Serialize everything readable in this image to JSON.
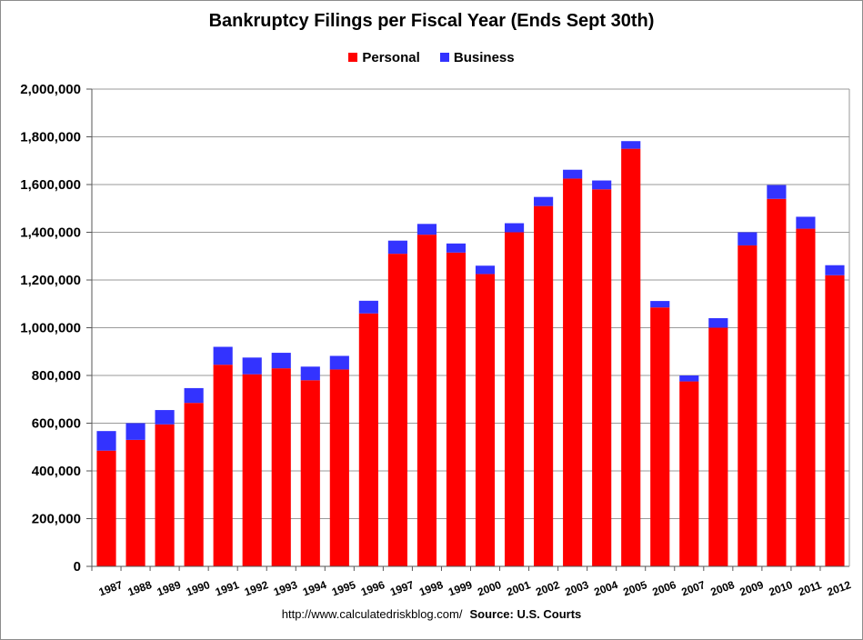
{
  "chart_data": {
    "type": "bar",
    "stacked": true,
    "title": "Bankruptcy Filings per Fiscal Year (Ends Sept 30th)",
    "xlabel": "",
    "ylabel": "",
    "ylim": [
      0,
      2000000
    ],
    "yticks": [
      "0",
      "200,000",
      "400,000",
      "600,000",
      "800,000",
      "1,000,000",
      "1,200,000",
      "1,400,000",
      "1,600,000",
      "1,800,000",
      "2,000,000"
    ],
    "ytick_values": [
      0,
      200000,
      400000,
      600000,
      800000,
      1000000,
      1200000,
      1400000,
      1600000,
      1800000,
      2000000
    ],
    "grid": true,
    "legend_position": "top-center",
    "categories": [
      "1987",
      "1988",
      "1989",
      "1990",
      "1991",
      "1992",
      "1993",
      "1994",
      "1995",
      "1996",
      "1997",
      "1998",
      "1999",
      "2000",
      "2001",
      "2002",
      "2003",
      "2004",
      "2005",
      "2006",
      "2007",
      "2008",
      "2009",
      "2010",
      "2011",
      "2012"
    ],
    "series": [
      {
        "name": "Personal",
        "color": "#ff0000",
        "values": [
          485000,
          530000,
          595000,
          685000,
          845000,
          805000,
          830000,
          780000,
          825000,
          1060000,
          1310000,
          1390000,
          1315000,
          1225000,
          1400000,
          1510000,
          1625000,
          1580000,
          1750000,
          1085000,
          775000,
          1000000,
          1345000,
          1540000,
          1415000,
          1220000
        ]
      },
      {
        "name": "Business",
        "color": "#3333ff",
        "values": [
          82000,
          70000,
          60000,
          62000,
          75000,
          70000,
          65000,
          57000,
          57000,
          53000,
          55000,
          45000,
          38000,
          35000,
          38000,
          38000,
          37000,
          37000,
          32000,
          27000,
          25000,
          40000,
          55000,
          58000,
          50000,
          42000
        ]
      }
    ],
    "totals": [
      567000,
      600000,
      655000,
      747000,
      920000,
      875000,
      895000,
      837000,
      882000,
      1113000,
      1365000,
      1435000,
      1353000,
      1260000,
      1438000,
      1548000,
      1662000,
      1617000,
      1782000,
      1112000,
      800000,
      1040000,
      1400000,
      1598000,
      1465000,
      1262000
    ]
  },
  "footer": {
    "url": "http://www.calculatedriskblog.com/",
    "source": "Source: U.S. Courts"
  }
}
